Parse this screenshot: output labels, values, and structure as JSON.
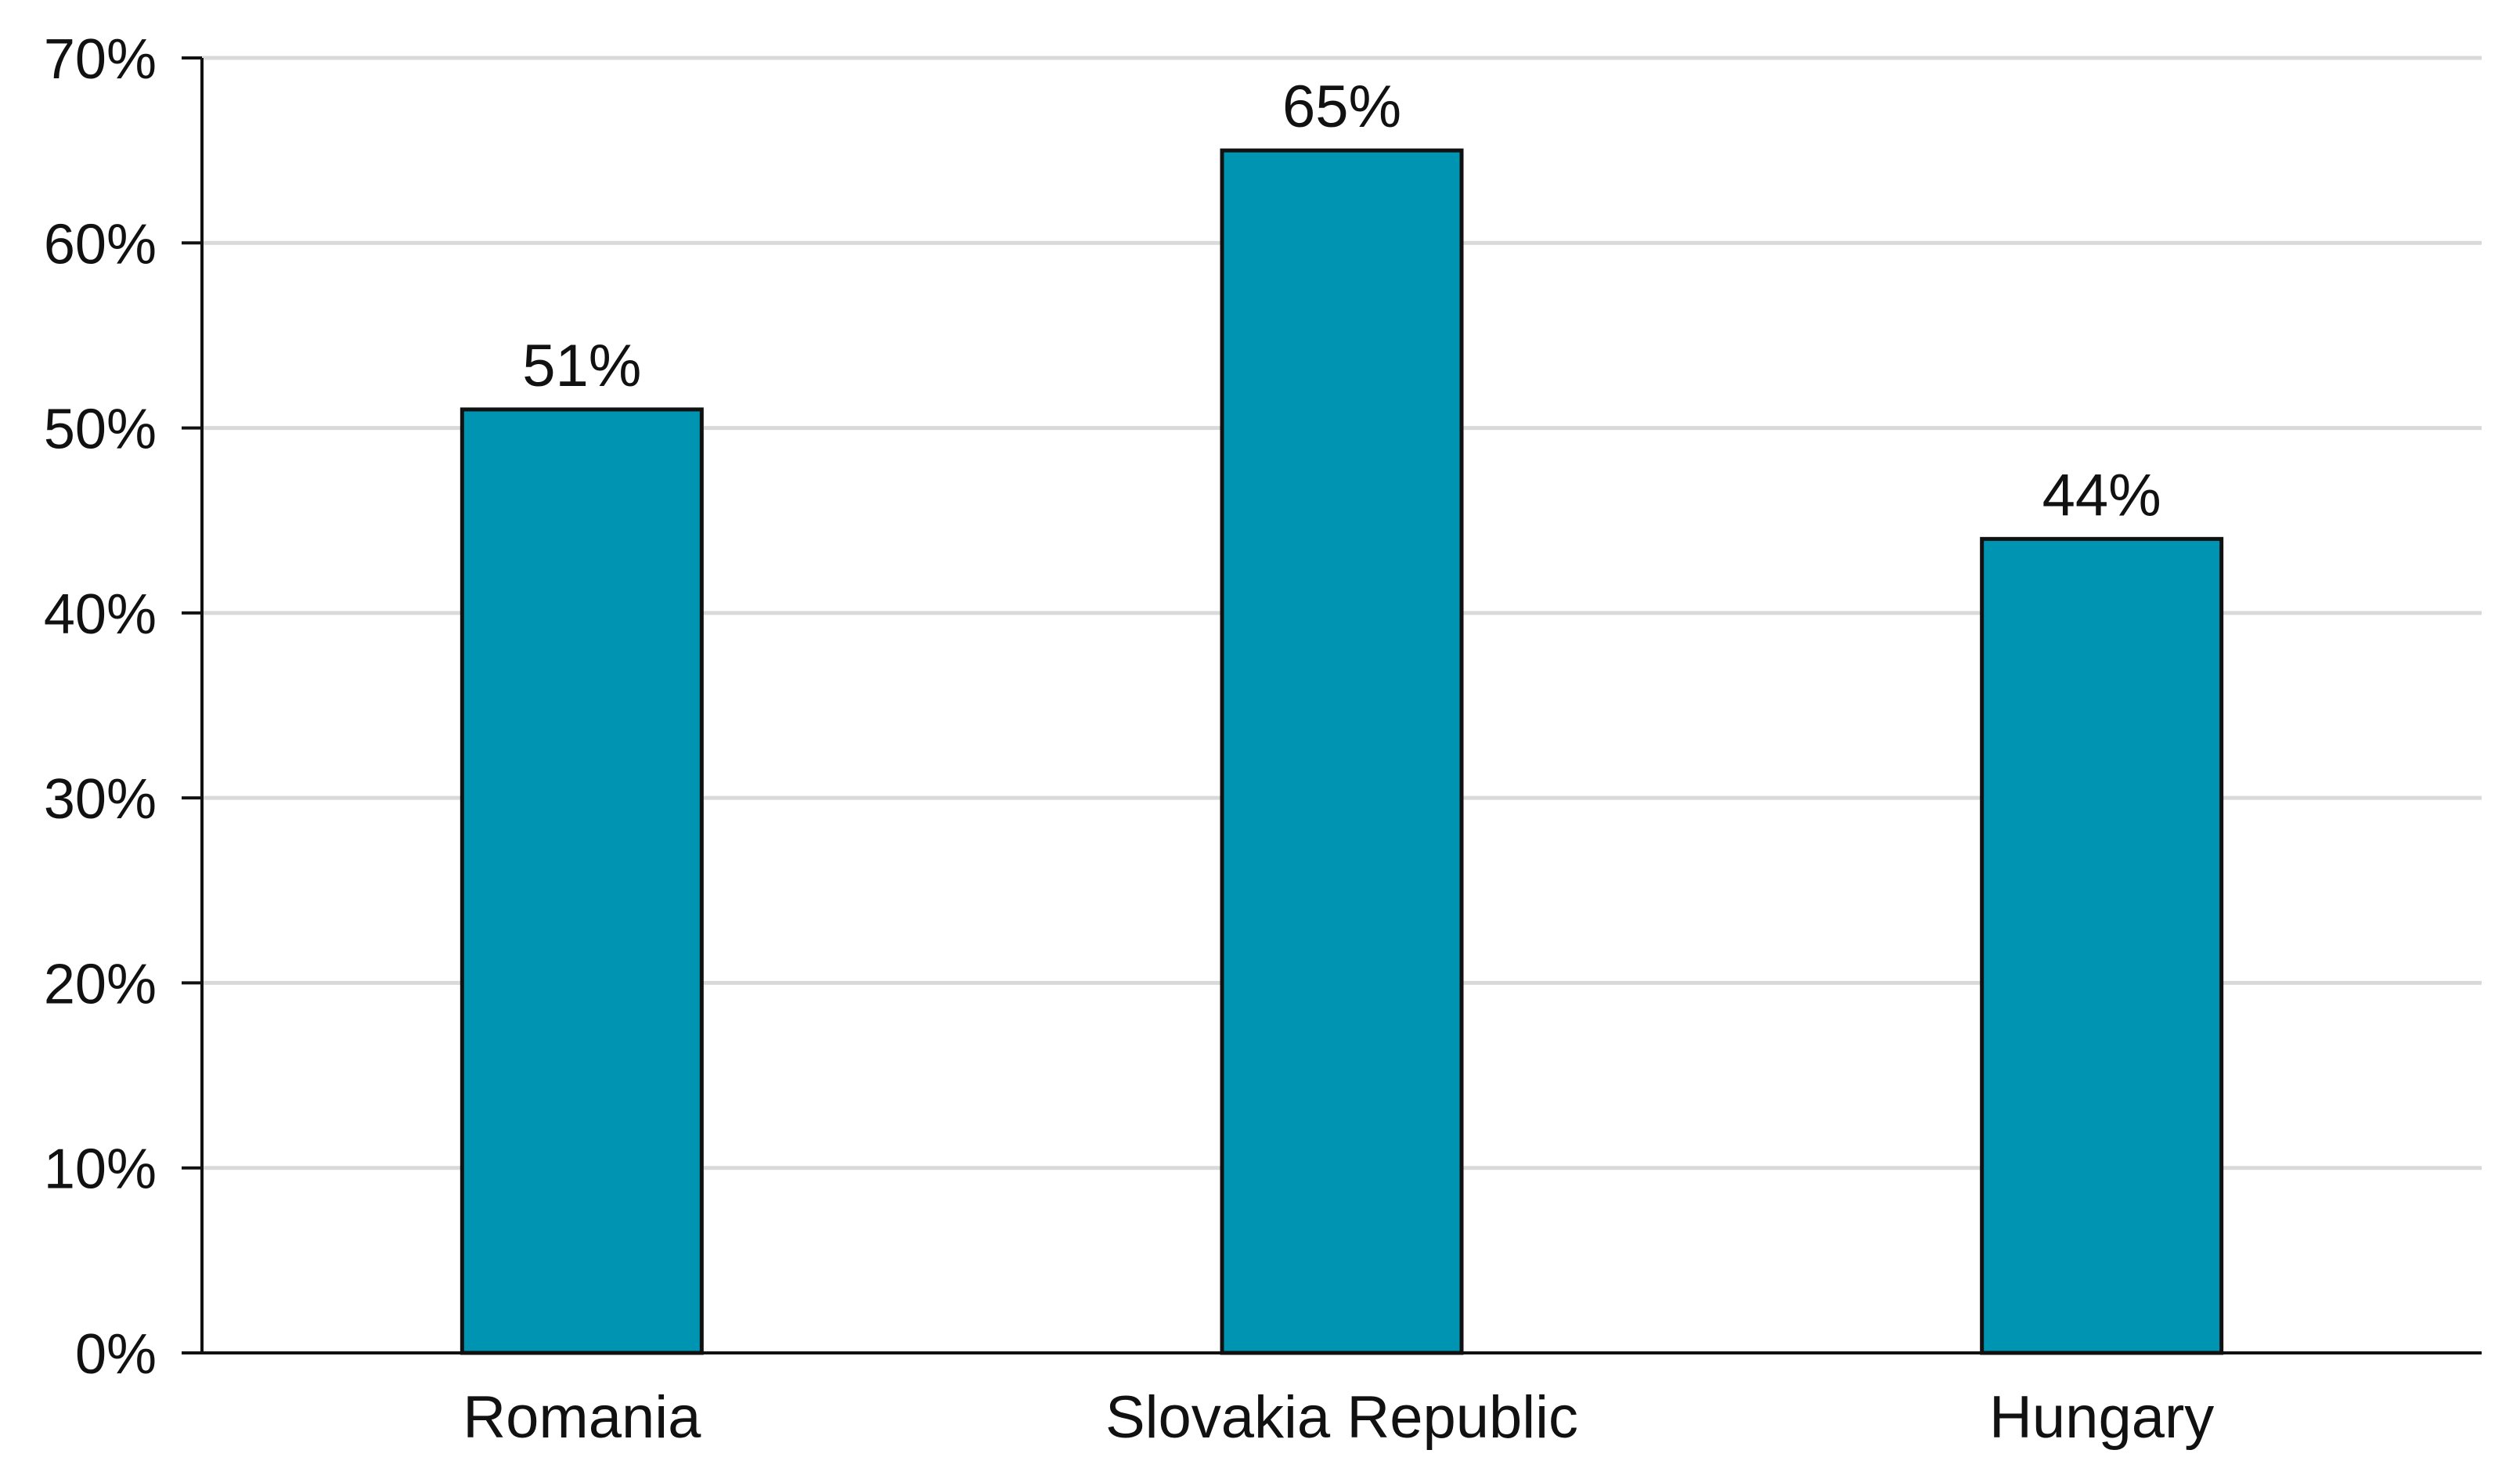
{
  "chart_data": {
    "type": "bar",
    "title": "",
    "xlabel": "",
    "ylabel": "",
    "categories": [
      "Romania",
      "Slovakia Republic",
      "Hungary"
    ],
    "values": [
      51,
      65,
      44
    ],
    "data_labels": [
      "51%",
      "65%",
      "44%"
    ],
    "ylim": [
      0,
      70
    ],
    "y_ticks": [
      0,
      10,
      20,
      30,
      40,
      50,
      60,
      70
    ],
    "y_tick_labels": [
      "0%",
      "10%",
      "20%",
      "30%",
      "40%",
      "50%",
      "60%",
      "70%"
    ],
    "grid": true,
    "legend": "none",
    "bar_color": "#0094B3",
    "bar_edge_color": "#111111",
    "grid_color": "#D9D9D9",
    "axis_color": "#111111"
  }
}
